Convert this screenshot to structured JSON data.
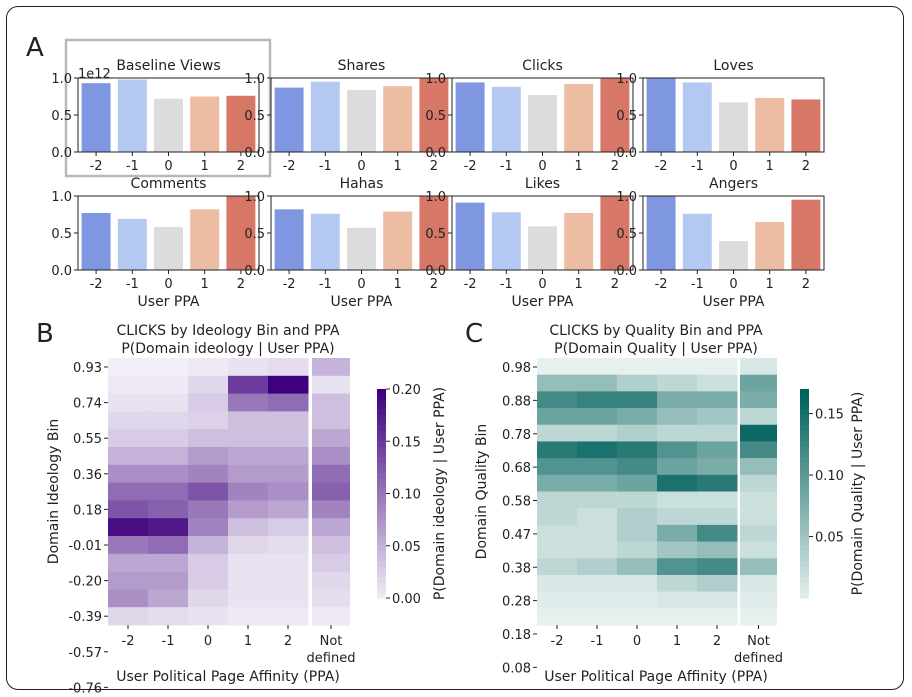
{
  "figure": {
    "panel_labels": [
      "A",
      "B",
      "C"
    ],
    "scale_label": "1e12",
    "panel_a_xlabel": "User PPA",
    "bottom_xlabel": "User Political Page Affinity (PPA)"
  },
  "colors": {
    "bars": [
      "#7f96e0",
      "#b3c9f2",
      "#dcdcdc",
      "#ecbca3",
      "#d77767"
    ],
    "purple_low": "#f2eff7",
    "purple_high": "#3f007d",
    "teal_low": "#e6f0ef",
    "teal_high": "#00605a",
    "highlight_box": "#b8b8b8"
  },
  "chart_data": [
    {
      "type": "bar",
      "title": "Baseline Views",
      "categories": [
        "-2",
        "-1",
        "0",
        "1",
        "2"
      ],
      "values": [
        0.93,
        0.98,
        0.72,
        0.75,
        0.76
      ],
      "ylim": [
        0,
        1.0
      ],
      "yticks": [
        "0.0",
        "0.5",
        "1.0"
      ],
      "highlighted": true
    },
    {
      "type": "bar",
      "title": "Shares",
      "categories": [
        "-2",
        "-1",
        "0",
        "1",
        "2"
      ],
      "values": [
        0.87,
        0.95,
        0.84,
        0.89,
        1.0
      ],
      "ylim": [
        0,
        1.0
      ],
      "yticks": [
        "0.0",
        "0.5",
        "1.0"
      ]
    },
    {
      "type": "bar",
      "title": "Clicks",
      "categories": [
        "-2",
        "-1",
        "0",
        "1",
        "2"
      ],
      "values": [
        0.94,
        0.88,
        0.77,
        0.92,
        1.0
      ],
      "ylim": [
        0,
        1.0
      ],
      "yticks": [
        "0.0",
        "0.5",
        "1.0"
      ]
    },
    {
      "type": "bar",
      "title": "Loves",
      "categories": [
        "-2",
        "-1",
        "0",
        "1",
        "2"
      ],
      "values": [
        1.0,
        0.94,
        0.67,
        0.73,
        0.71
      ],
      "ylim": [
        0,
        1.0
      ],
      "yticks": [
        "0.0",
        "0.5",
        "1.0"
      ]
    },
    {
      "type": "bar",
      "title": "Comments",
      "categories": [
        "-2",
        "-1",
        "0",
        "1",
        "2"
      ],
      "values": [
        0.77,
        0.69,
        0.58,
        0.82,
        1.0
      ],
      "ylim": [
        0,
        1.0
      ],
      "yticks": [
        "0.0",
        "0.5",
        "1.0"
      ],
      "xlabel": "User PPA"
    },
    {
      "type": "bar",
      "title": "Hahas",
      "categories": [
        "-2",
        "-1",
        "0",
        "1",
        "2"
      ],
      "values": [
        0.82,
        0.76,
        0.57,
        0.79,
        1.0
      ],
      "ylim": [
        0,
        1.0
      ],
      "yticks": [
        "0.0",
        "0.5",
        "1.0"
      ],
      "xlabel": "User PPA"
    },
    {
      "type": "bar",
      "title": "Likes",
      "categories": [
        "-2",
        "-1",
        "0",
        "1",
        "2"
      ],
      "values": [
        0.91,
        0.78,
        0.59,
        0.77,
        1.0
      ],
      "ylim": [
        0,
        1.0
      ],
      "yticks": [
        "0.0",
        "0.5",
        "1.0"
      ],
      "xlabel": "User PPA"
    },
    {
      "type": "bar",
      "title": "Angers",
      "categories": [
        "-2",
        "-1",
        "0",
        "1",
        "2"
      ],
      "values": [
        1.0,
        0.76,
        0.39,
        0.65,
        0.95
      ],
      "ylim": [
        0,
        1.0
      ],
      "yticks": [
        "0.0",
        "0.5",
        "1.0"
      ],
      "xlabel": "User PPA"
    },
    {
      "type": "heatmap",
      "title": "CLICKS by Ideology Bin and PPA",
      "subtitle": "P(Domain ideology | User PPA)",
      "xlabel": "User Political Page Affinity (PPA)",
      "ylabel": "Domain Ideology Bin",
      "columns": [
        "-2",
        "-1",
        "0",
        "1",
        "2"
      ],
      "extra_column": [
        "Not",
        "defined"
      ],
      "row_labels": [
        "0.93",
        "0.74",
        "0.55",
        "0.36",
        "0.18",
        "-0.01",
        "-0.20",
        "-0.39",
        "-0.57",
        "-0.76"
      ],
      "values": [
        [
          0.0,
          0.0,
          0.005,
          0.01,
          0.015
        ],
        [
          0.005,
          0.005,
          0.02,
          0.15,
          0.2
        ],
        [
          0.01,
          0.01,
          0.03,
          0.1,
          0.11
        ],
        [
          0.02,
          0.02,
          0.025,
          0.04,
          0.04
        ],
        [
          0.03,
          0.03,
          0.04,
          0.04,
          0.04
        ],
        [
          0.05,
          0.05,
          0.07,
          0.06,
          0.06
        ],
        [
          0.08,
          0.08,
          0.09,
          0.07,
          0.07
        ],
        [
          0.11,
          0.11,
          0.13,
          0.09,
          0.08
        ],
        [
          0.13,
          0.12,
          0.1,
          0.07,
          0.06
        ],
        [
          0.19,
          0.18,
          0.09,
          0.04,
          0.03
        ],
        [
          0.1,
          0.11,
          0.05,
          0.02,
          0.015
        ],
        [
          0.06,
          0.06,
          0.03,
          0.01,
          0.01
        ],
        [
          0.07,
          0.07,
          0.03,
          0.01,
          0.01
        ],
        [
          0.08,
          0.06,
          0.02,
          0.01,
          0.01
        ],
        [
          0.02,
          0.015,
          0.01,
          0.005,
          0.005
        ]
      ],
      "extra_values": [
        0.05,
        0.01,
        0.04,
        0.04,
        0.06,
        0.08,
        0.11,
        0.12,
        0.09,
        0.06,
        0.04,
        0.03,
        0.02,
        0.015,
        0.005
      ],
      "colorbar": {
        "label": "P(Domain ideology | User PPA)",
        "range": [
          0,
          0.2
        ],
        "ticks": [
          "0.00",
          "0.05",
          "0.10",
          "0.15",
          "0.20"
        ]
      }
    },
    {
      "type": "heatmap",
      "title": "CLICKS by Quality Bin and PPA",
      "subtitle": "P(Domain Quality | User PPA)",
      "xlabel": "User Political Page Affinity (PPA)",
      "ylabel": "Domain Quality Bin",
      "columns": [
        "-2",
        "-1",
        "0",
        "1",
        "2"
      ],
      "extra_column": [
        "Not",
        "defined"
      ],
      "row_labels": [
        "0.98",
        "0.88",
        "0.78",
        "0.68",
        "0.58",
        "0.47",
        "0.38",
        "0.28",
        "0.18",
        "0.08"
      ],
      "values": [
        [
          0.0,
          0.0,
          0.0,
          0.0,
          0.0
        ],
        [
          0.06,
          0.06,
          0.04,
          0.03,
          0.02
        ],
        [
          0.12,
          0.13,
          0.13,
          0.08,
          0.08
        ],
        [
          0.09,
          0.09,
          0.08,
          0.06,
          0.05
        ],
        [
          0.03,
          0.03,
          0.04,
          0.03,
          0.03
        ],
        [
          0.14,
          0.15,
          0.14,
          0.11,
          0.09
        ],
        [
          0.11,
          0.11,
          0.12,
          0.09,
          0.08
        ],
        [
          0.08,
          0.08,
          0.09,
          0.15,
          0.14
        ],
        [
          0.03,
          0.03,
          0.03,
          0.02,
          0.02
        ],
        [
          0.03,
          0.02,
          0.04,
          0.03,
          0.03
        ],
        [
          0.02,
          0.02,
          0.04,
          0.08,
          0.12
        ],
        [
          0.02,
          0.02,
          0.03,
          0.05,
          0.06
        ],
        [
          0.03,
          0.04,
          0.06,
          0.11,
          0.12
        ],
        [
          0.01,
          0.01,
          0.01,
          0.03,
          0.04
        ],
        [
          0.005,
          0.005,
          0.005,
          0.01,
          0.01
        ],
        [
          0.0,
          0.0,
          0.0,
          0.0,
          0.0
        ]
      ],
      "extra_values": [
        0.01,
        0.09,
        0.08,
        0.03,
        0.16,
        0.12,
        0.06,
        0.03,
        0.02,
        0.02,
        0.03,
        0.02,
        0.06,
        0.01,
        0.005,
        0.0
      ],
      "colorbar": {
        "label": "P(Domain Quality | User PPA)",
        "range": [
          0,
          0.17
        ],
        "ticks": [
          "0.05",
          "0.10",
          "0.15"
        ]
      }
    }
  ]
}
